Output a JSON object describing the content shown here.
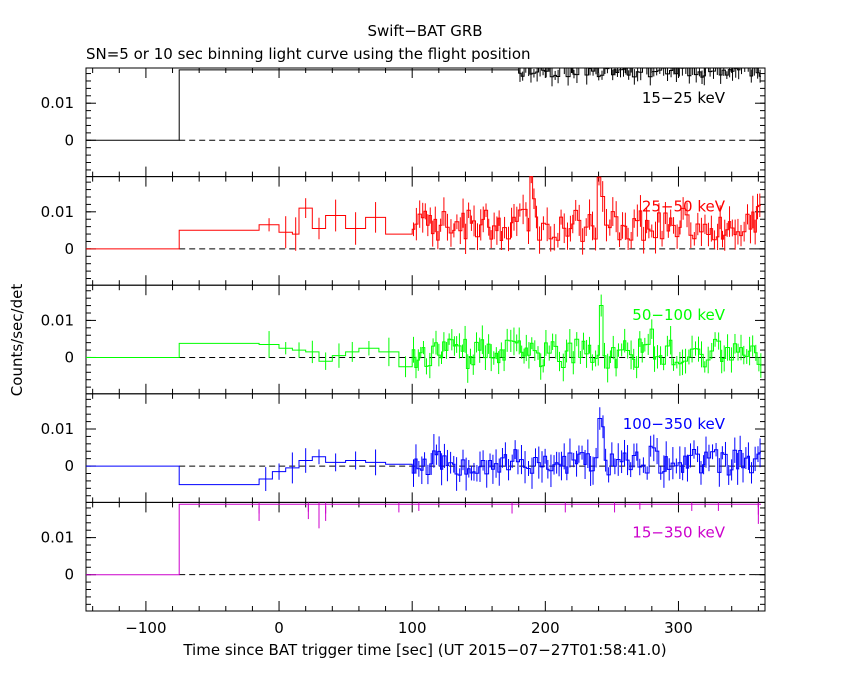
{
  "chart_data": {
    "type": "line",
    "title": "Swift−BAT GRB",
    "subtitle": "SN=5 or 10 sec binning light curve using the flight position",
    "xlabel": "Time since BAT trigger time [sec] (UT 2015−07−27T01:58:41.0)",
    "ylabel": "Counts/sec/det",
    "xlim": [
      -145,
      365
    ],
    "ylim": [
      -0.0098,
      0.0195
    ],
    "x_ticks": [
      -100,
      0,
      100,
      200,
      300
    ],
    "x_tick_labels": [
      "−100",
      "0",
      "100",
      "200",
      "300"
    ],
    "y_ticks": [
      0,
      0.01
    ],
    "y_tick_labels": [
      "0",
      "0.01"
    ],
    "panels": [
      {
        "label": "15−25 keV",
        "color": "#000000",
        "seed": 11,
        "coarse": [
          [
            -145,
            -75,
            0
          ],
          [
            -75,
            180,
            0.019
          ]
        ],
        "fine_start": 180,
        "fine_end": 362,
        "base": 0.019,
        "amp": 0.002,
        "err": 0.002,
        "bursts": []
      },
      {
        "label": "25−50 keV",
        "color": "#ff0000",
        "seed": 23,
        "coarse": [
          [
            -145,
            -75,
            0
          ],
          [
            -75,
            -15,
            0.005
          ],
          [
            -15,
            0,
            0.0065
          ],
          [
            0,
            10,
            0.0045
          ],
          [
            10,
            15,
            0.004
          ],
          [
            15,
            25,
            0.011
          ],
          [
            25,
            35,
            0.0055
          ],
          [
            35,
            50,
            0.009
          ],
          [
            50,
            65,
            0.0055
          ],
          [
            65,
            80,
            0.0085
          ],
          [
            80,
            100,
            0.004
          ]
        ],
        "fine_start": 100,
        "fine_end": 362,
        "base": 0.0065,
        "amp": 0.0045,
        "err": 0.0035,
        "bursts": [
          [
            190,
            0.01
          ],
          [
            240,
            0.011
          ],
          [
            360,
            0.009
          ]
        ]
      },
      {
        "label": "50−100 keV",
        "color": "#00ff00",
        "seed": 37,
        "coarse": [
          [
            -145,
            -75,
            0
          ],
          [
            -75,
            -15,
            0.0038
          ],
          [
            -15,
            0,
            0.0035
          ],
          [
            0,
            10,
            0.0025
          ],
          [
            10,
            20,
            0.002
          ],
          [
            20,
            30,
            0.0015
          ],
          [
            30,
            40,
            -0.001
          ],
          [
            40,
            50,
            0.0005
          ],
          [
            50,
            60,
            0.0015
          ],
          [
            60,
            75,
            0.0025
          ],
          [
            75,
            90,
            0.0015
          ],
          [
            90,
            100,
            -0.0025
          ]
        ],
        "fine_start": 100,
        "fine_end": 362,
        "base": 0.001,
        "amp": 0.004,
        "err": 0.003,
        "bursts": [
          [
            240,
            0.011
          ],
          [
            278,
            0.008
          ],
          [
            345,
            0.006
          ]
        ]
      },
      {
        "label": "100−350 keV",
        "color": "#0000ff",
        "seed": 53,
        "coarse": [
          [
            -145,
            -75,
            0
          ],
          [
            -75,
            -15,
            -0.005
          ],
          [
            -15,
            -5,
            -0.0035
          ],
          [
            -5,
            5,
            -0.0015
          ],
          [
            5,
            15,
            -0.0005
          ],
          [
            15,
            25,
            0.0015
          ],
          [
            25,
            35,
            0.0025
          ],
          [
            35,
            50,
            0.001
          ],
          [
            50,
            65,
            0.0015
          ],
          [
            65,
            80,
            0.001
          ],
          [
            80,
            100,
            0.0005
          ]
        ],
        "fine_start": 100,
        "fine_end": 362,
        "base": 0.001,
        "amp": 0.0035,
        "err": 0.0035,
        "bursts": [
          [
            115,
            0.007
          ],
          [
            240,
            0.012
          ],
          [
            278,
            0.006
          ]
        ]
      },
      {
        "label": "15−350 keV",
        "color": "#cc00cc",
        "seed": 71,
        "coarse": [
          [
            -145,
            -75,
            0
          ],
          [
            -75,
            180,
            0.019
          ]
        ],
        "fine_start": 180,
        "fine_end": 362,
        "base": 0.019,
        "amp": 0.0,
        "err": 0.002,
        "bursts": [],
        "dips": [
          [
            -15,
            0.0165
          ],
          [
            22,
            0.017
          ],
          [
            30,
            0.0165
          ],
          [
            35,
            0.0165
          ],
          [
            90,
            0.0168
          ],
          [
            105,
            0.0172
          ],
          [
            175,
            0.0165
          ],
          [
            215,
            0.0168
          ],
          [
            252,
            0.0168
          ],
          [
            310,
            0.0172
          ],
          [
            330,
            0.0172
          ],
          [
            360,
            0.0162
          ]
        ],
        "err_bars": [
          [
            -15,
            0.0165,
            0.002
          ],
          [
            22,
            0.017,
            0.002
          ],
          [
            30,
            0.0165,
            0.004
          ],
          [
            35,
            0.0165,
            0.002
          ],
          [
            360,
            0.0162,
            0.0025
          ]
        ]
      }
    ]
  }
}
